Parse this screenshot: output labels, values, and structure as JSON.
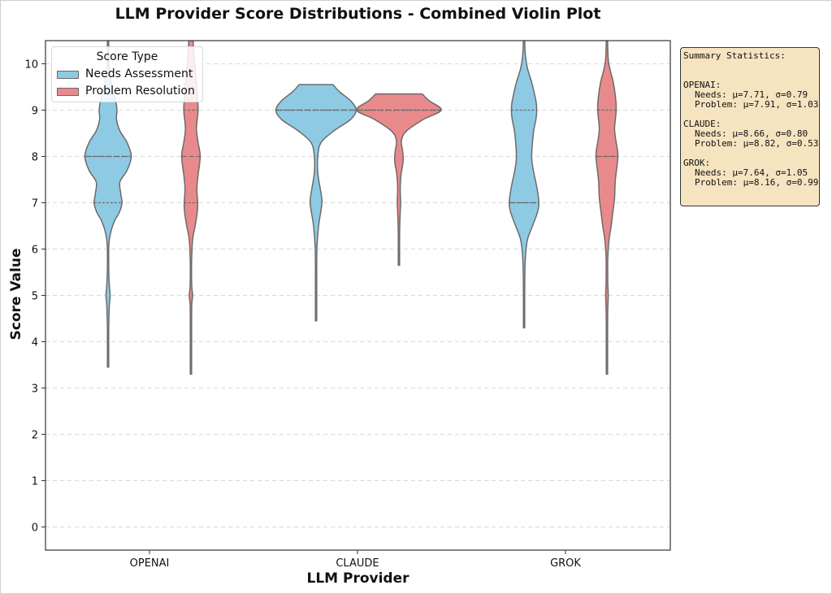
{
  "chart_data": {
    "type": "violin",
    "title": "LLM Provider Score Distributions - Combined Violin Plot",
    "xlabel": "LLM Provider",
    "ylabel": "Score Value",
    "ylim": [
      -0.5,
      10.5
    ],
    "yticks": [
      0,
      1,
      2,
      3,
      4,
      5,
      6,
      7,
      8,
      9,
      10
    ],
    "grid": "horizontal dashed",
    "legend": {
      "title": "Score Type",
      "placement": "top-left",
      "entries": [
        {
          "label": "Needs Assessment",
          "color": "#8ecae3"
        },
        {
          "label": "Problem Resolution",
          "color": "#e88a8c"
        }
      ]
    },
    "categories": [
      "OPENAI",
      "CLAUDE",
      "GROK"
    ],
    "series": [
      {
        "name": "Needs Assessment",
        "color": "#8ecae3",
        "violins": [
          {
            "category": "OPENAI",
            "min": 3.45,
            "max": 10.5,
            "q1": 7,
            "median": 8,
            "q3": 8,
            "profile": [
              [
                3.45,
                0
              ],
              [
                4.3,
                0.01
              ],
              [
                4.8,
                0.03
              ],
              [
                5.0,
                0.05
              ],
              [
                5.2,
                0.03
              ],
              [
                5.6,
                0.01
              ],
              [
                6.1,
                0.02
              ],
              [
                6.35,
                0.06
              ],
              [
                6.6,
                0.15
              ],
              [
                6.8,
                0.27
              ],
              [
                7.0,
                0.33
              ],
              [
                7.2,
                0.3
              ],
              [
                7.45,
                0.28
              ],
              [
                7.7,
                0.45
              ],
              [
                8.0,
                0.55
              ],
              [
                8.3,
                0.45
              ],
              [
                8.55,
                0.28
              ],
              [
                8.8,
                0.2
              ],
              [
                9.0,
                0.21
              ],
              [
                9.25,
                0.17
              ],
              [
                9.55,
                0.08
              ],
              [
                9.9,
                0.03
              ],
              [
                10.2,
                0.01
              ],
              [
                10.5,
                0.005
              ]
            ]
          },
          {
            "category": "CLAUDE",
            "min": 4.45,
            "max": 9.55,
            "q1": 9,
            "median": 9,
            "q3": 9,
            "profile": [
              [
                4.45,
                0
              ],
              [
                5.4,
                0.01
              ],
              [
                6.0,
                0.02
              ],
              [
                6.5,
                0.06
              ],
              [
                6.85,
                0.12
              ],
              [
                7.05,
                0.14
              ],
              [
                7.3,
                0.1
              ],
              [
                7.65,
                0.04
              ],
              [
                8.0,
                0.04
              ],
              [
                8.3,
                0.12
              ],
              [
                8.55,
                0.42
              ],
              [
                8.8,
                0.82
              ],
              [
                9.0,
                0.95
              ],
              [
                9.2,
                0.82
              ],
              [
                9.4,
                0.55
              ],
              [
                9.55,
                0.4
              ]
            ]
          },
          {
            "category": "GROK",
            "min": 4.3,
            "max": 10.5,
            "q1": 7,
            "median": 7,
            "q3": 9,
            "profile": [
              [
                4.3,
                0
              ],
              [
                5.2,
                0.01
              ],
              [
                5.8,
                0.03
              ],
              [
                6.2,
                0.08
              ],
              [
                6.5,
                0.2
              ],
              [
                6.8,
                0.32
              ],
              [
                7.0,
                0.35
              ],
              [
                7.3,
                0.31
              ],
              [
                7.7,
                0.22
              ],
              [
                8.0,
                0.18
              ],
              [
                8.5,
                0.22
              ],
              [
                8.8,
                0.28
              ],
              [
                9.0,
                0.3
              ],
              [
                9.2,
                0.28
              ],
              [
                9.6,
                0.18
              ],
              [
                9.9,
                0.08
              ],
              [
                10.2,
                0.03
              ],
              [
                10.5,
                0.01
              ]
            ]
          }
        ]
      },
      {
        "name": "Problem Resolution",
        "color": "#e88a8c",
        "violins": [
          {
            "category": "OPENAI",
            "min": 3.3,
            "max": 10.5,
            "q1": 7,
            "median": 8,
            "q3": 9,
            "profile": [
              [
                3.3,
                0
              ],
              [
                4.3,
                0.01
              ],
              [
                4.8,
                0.02
              ],
              [
                5.0,
                0.04
              ],
              [
                5.2,
                0.02
              ],
              [
                5.7,
                0.01
              ],
              [
                6.2,
                0.04
              ],
              [
                6.5,
                0.1
              ],
              [
                6.8,
                0.15
              ],
              [
                7.0,
                0.16
              ],
              [
                7.3,
                0.14
              ],
              [
                7.6,
                0.17
              ],
              [
                8.0,
                0.22
              ],
              [
                8.3,
                0.17
              ],
              [
                8.6,
                0.13
              ],
              [
                9.0,
                0.17
              ],
              [
                9.3,
                0.15
              ],
              [
                9.7,
                0.12
              ],
              [
                10.1,
                0.08
              ],
              [
                10.5,
                0.05
              ]
            ]
          },
          {
            "category": "CLAUDE",
            "min": 5.65,
            "max": 9.35,
            "q1": 9,
            "median": 9,
            "q3": 9,
            "profile": [
              [
                5.65,
                0
              ],
              [
                6.3,
                0.01
              ],
              [
                6.8,
                0.03
              ],
              [
                7.0,
                0.04
              ],
              [
                7.3,
                0.03
              ],
              [
                7.6,
                0.05
              ],
              [
                7.9,
                0.1
              ],
              [
                8.1,
                0.09
              ],
              [
                8.35,
                0.06
              ],
              [
                8.55,
                0.18
              ],
              [
                8.8,
                0.58
              ],
              [
                9.0,
                1.0
              ],
              [
                9.2,
                0.72
              ],
              [
                9.35,
                0.55
              ]
            ]
          },
          {
            "category": "GROK",
            "min": 3.3,
            "max": 10.5,
            "q1": 8,
            "median": 8,
            "q3": 9,
            "profile": [
              [
                3.3,
                0
              ],
              [
                4.2,
                0.01
              ],
              [
                4.7,
                0.02
              ],
              [
                5.0,
                0.03
              ],
              [
                5.3,
                0.02
              ],
              [
                5.8,
                0.02
              ],
              [
                6.2,
                0.05
              ],
              [
                6.5,
                0.1
              ],
              [
                6.8,
                0.14
              ],
              [
                7.1,
                0.18
              ],
              [
                7.5,
                0.2
              ],
              [
                8.0,
                0.26
              ],
              [
                8.3,
                0.22
              ],
              [
                8.6,
                0.18
              ],
              [
                9.0,
                0.22
              ],
              [
                9.3,
                0.2
              ],
              [
                9.6,
                0.15
              ],
              [
                9.85,
                0.08
              ],
              [
                10.1,
                0.03
              ],
              [
                10.5,
                0.01
              ]
            ]
          }
        ]
      }
    ],
    "summary_statistics": {
      "title": "Summary Statistics:",
      "groups": [
        {
          "provider": "OPENAI:",
          "needs": "Needs: μ=7.71, σ=0.79",
          "problem": "Problem: μ=7.91, σ=1.03"
        },
        {
          "provider": "CLAUDE:",
          "needs": "Needs: μ=8.66, σ=0.80",
          "problem": "Problem: μ=8.82, σ=0.53"
        },
        {
          "provider": "GROK:",
          "needs": "Needs: μ=7.64, σ=1.05",
          "problem": "Problem: μ=8.16, σ=0.99"
        }
      ]
    }
  }
}
